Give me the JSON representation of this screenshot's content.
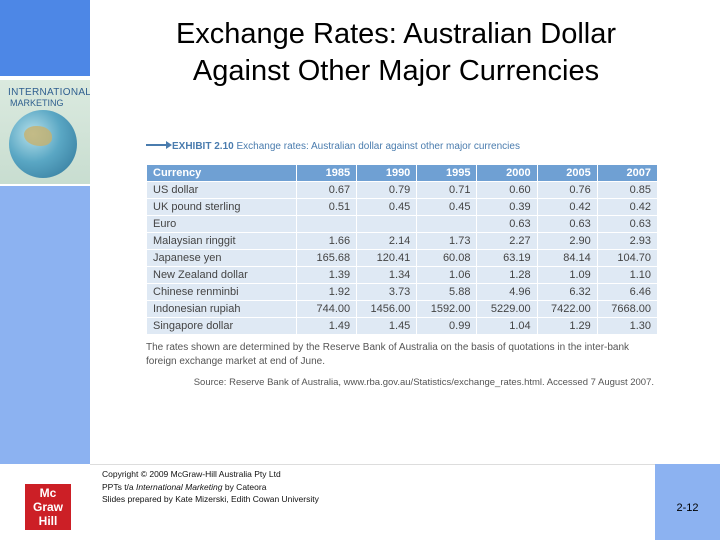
{
  "slide": {
    "title_line1": "Exchange Rates: Australian Dollar",
    "title_line2": "Against Other Major Currencies",
    "book_title_line1": "INTERNATIONAL",
    "book_title_line2": "MARKETING",
    "exhibit_label": "EXHIBIT 2.10",
    "exhibit_caption": "Exchange rates: Australian dollar against other major currencies",
    "note": "The rates shown are determined by the Reserve Bank of Australia on the basis of quotations in the inter-bank foreign exchange market at end of June.",
    "source": "Source: Reserve Bank of Australia, www.rba.gov.au/Statistics/exchange_rates.html. Accessed 7 August 2007.",
    "copyright": "Copyright © 2009 McGraw-Hill Australia Pty Ltd",
    "ppt_prefix": "PPTs t/a ",
    "ppt_book": "International Marketing",
    "ppt_suffix": " by Cateora",
    "prepared_by": "Slides prepared by Kate Mizerski, Edith Cowan University",
    "page_number": "2-12",
    "logo_text_1": "Mc",
    "logo_text_2": "Graw",
    "logo_text_3": "Hill"
  },
  "table": {
    "headers": [
      "Currency",
      "1985",
      "1990",
      "1995",
      "2000",
      "2005",
      "2007"
    ],
    "rows": [
      [
        "US dollar",
        "0.67",
        "0.79",
        "0.71",
        "0.60",
        "0.76",
        "0.85"
      ],
      [
        "UK pound sterling",
        "0.51",
        "0.45",
        "0.45",
        "0.39",
        "0.42",
        "0.42"
      ],
      [
        "Euro",
        "",
        "",
        "",
        "0.63",
        "0.63",
        "0.63"
      ],
      [
        "Malaysian ringgit",
        "1.66",
        "2.14",
        "1.73",
        "2.27",
        "2.90",
        "2.93"
      ],
      [
        "Japanese yen",
        "165.68",
        "120.41",
        "60.08",
        "63.19",
        "84.14",
        "104.70"
      ],
      [
        "New Zealand dollar",
        "1.39",
        "1.34",
        "1.06",
        "1.28",
        "1.09",
        "1.10"
      ],
      [
        "Chinese renminbi",
        "1.92",
        "3.73",
        "5.88",
        "4.96",
        "6.32",
        "6.46"
      ],
      [
        "Indonesian rupiah",
        "744.00",
        "1456.00",
        "1592.00",
        "5229.00",
        "7422.00",
        "7668.00"
      ],
      [
        "Singapore dollar",
        "1.49",
        "1.45",
        "0.99",
        "1.04",
        "1.29",
        "1.30"
      ]
    ]
  },
  "colors": {
    "left_bar_dark": "#4d87e6",
    "left_bar_light": "#8cb2f1",
    "table_header": "#6fa0d3",
    "table_cell": "#dfe9f4",
    "logo_red": "#cc1f26"
  }
}
